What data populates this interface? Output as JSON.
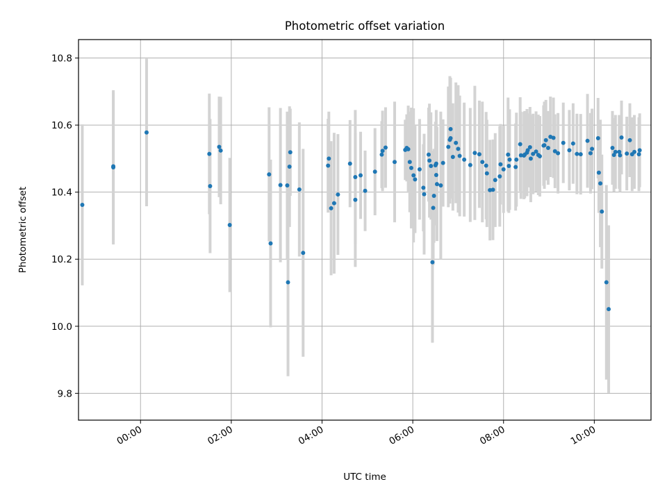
{
  "chart_data": {
    "type": "scatter",
    "title": "Photometric offset variation",
    "xlabel": "UTC time",
    "ylabel": "Photometric offset",
    "x_unit": "UTC time of day (HH:MM)",
    "xlim": [
      "-01:22",
      "11:15"
    ],
    "ylim": [
      9.72,
      10.855
    ],
    "x_ticks": [
      "00:00",
      "02:00",
      "04:00",
      "06:00",
      "08:00",
      "10:00"
    ],
    "y_ticks": [
      9.8,
      10.0,
      10.2,
      10.4,
      10.6,
      10.8
    ],
    "y_tick_labels": [
      "9.8",
      "10.0",
      "10.2",
      "10.4",
      "10.6",
      "10.8"
    ],
    "grid": true,
    "legend": "none",
    "colors": {
      "points": "#1f77b4",
      "errorbars": "#d3d3d3"
    },
    "series": [
      {
        "x": [
          "-01:17",
          "-00:36",
          "-00:36",
          "00:08",
          "01:31",
          "01:32",
          "01:44",
          "01:46",
          "01:58",
          "02:50",
          "02:52",
          "03:05",
          "03:14",
          "03:15",
          "03:17",
          "03:18",
          "03:30",
          "03:35",
          "04:08",
          "04:09",
          "04:12",
          "04:16",
          "04:21",
          "04:37",
          "04:44",
          "04:44",
          "04:51",
          "04:57",
          "05:10",
          "05:19",
          "05:20",
          "05:24",
          "05:36",
          "05:50",
          "05:52",
          "05:54",
          "05:56",
          "05:58",
          "06:01",
          "06:03",
          "06:09",
          "06:14",
          "06:15",
          "06:21",
          "06:22",
          "06:24",
          "06:26",
          "06:27",
          "06:28",
          "06:30",
          "06:31",
          "06:31",
          "06:32",
          "06:37",
          "06:40",
          "06:47",
          "06:49",
          "06:50",
          "06:50",
          "06:53",
          "06:57",
          "07:00",
          "07:02",
          "07:08",
          "07:16",
          "07:22",
          "07:28",
          "07:32",
          "07:37",
          "07:38",
          "07:42",
          "07:46",
          "07:49",
          "07:55",
          "07:56",
          "08:00",
          "08:06",
          "08:07",
          "08:08",
          "08:16",
          "08:17",
          "08:22",
          "08:23",
          "08:27",
          "08:28",
          "08:31",
          "08:32",
          "08:35",
          "08:36",
          "08:39",
          "08:43",
          "08:46",
          "08:48",
          "08:53",
          "08:54",
          "08:56",
          "08:59",
          "09:02",
          "09:06",
          "09:08",
          "09:12",
          "09:19",
          "09:27",
          "09:32",
          "09:37",
          "09:42",
          "09:51",
          "09:55",
          "09:57",
          "10:05",
          "10:06",
          "10:08",
          "10:10",
          "10:16",
          "10:19",
          "10:24",
          "10:26",
          "10:28",
          "10:33",
          "10:34",
          "10:36",
          "10:43",
          "10:47",
          "10:50",
          "10:53",
          "10:59",
          "11:00"
        ],
        "y": [
          10.362,
          10.477,
          10.474,
          10.578,
          10.514,
          10.418,
          10.535,
          10.524,
          10.302,
          10.453,
          10.247,
          10.421,
          10.42,
          10.131,
          10.476,
          10.519,
          10.408,
          10.219,
          10.479,
          10.5,
          10.352,
          10.367,
          10.393,
          10.485,
          10.445,
          10.377,
          10.45,
          10.404,
          10.461,
          10.512,
          10.523,
          10.533,
          10.49,
          10.526,
          10.532,
          10.528,
          10.49,
          10.472,
          10.45,
          10.438,
          10.468,
          10.413,
          10.394,
          10.512,
          10.494,
          10.478,
          10.191,
          10.353,
          10.389,
          10.48,
          10.451,
          10.485,
          10.424,
          10.42,
          10.487,
          10.535,
          10.556,
          10.588,
          10.561,
          10.505,
          10.547,
          10.529,
          10.508,
          10.497,
          10.481,
          10.517,
          10.513,
          10.49,
          10.479,
          10.456,
          10.406,
          10.407,
          10.436,
          10.447,
          10.483,
          10.468,
          10.512,
          10.478,
          10.497,
          10.475,
          10.497,
          10.543,
          10.51,
          10.509,
          10.512,
          10.518,
          10.525,
          10.534,
          10.5,
          10.514,
          10.521,
          10.511,
          10.507,
          10.539,
          10.54,
          10.555,
          10.532,
          10.565,
          10.562,
          10.522,
          10.516,
          10.547,
          10.525,
          10.545,
          10.514,
          10.513,
          10.553,
          10.516,
          10.529,
          10.561,
          10.458,
          10.426,
          10.342,
          10.131,
          10.051,
          10.532,
          10.511,
          10.52,
          10.52,
          10.51,
          10.563,
          10.515,
          10.555,
          10.513,
          10.52,
          10.513,
          10.525
        ],
        "yerr": [
          0.24,
          0.22,
          0.23,
          0.22,
          0.18,
          0.2,
          0.15,
          0.16,
          0.2,
          0.2,
          0.25,
          0.23,
          0.22,
          0.28,
          0.18,
          0.13,
          0.2,
          0.31,
          0.14,
          0.14,
          0.2,
          0.21,
          0.18,
          0.13,
          0.2,
          0.2,
          0.13,
          0.12,
          0.13,
          0.1,
          0.12,
          0.12,
          0.18,
          0.09,
          0.1,
          0.13,
          0.15,
          0.18,
          0.2,
          0.16,
          0.15,
          0.13,
          0.18,
          0.14,
          0.17,
          0.16,
          0.24,
          0.17,
          0.14,
          0.13,
          0.15,
          0.16,
          0.17,
          0.22,
          0.13,
          0.18,
          0.19,
          0.15,
          0.18,
          0.16,
          0.18,
          0.19,
          0.18,
          0.17,
          0.17,
          0.2,
          0.16,
          0.18,
          0.16,
          0.16,
          0.15,
          0.15,
          0.14,
          0.15,
          0.12,
          0.13,
          0.17,
          0.14,
          0.15,
          0.13,
          0.14,
          0.14,
          0.13,
          0.13,
          0.13,
          0.13,
          0.11,
          0.12,
          0.13,
          0.12,
          0.12,
          0.12,
          0.12,
          0.12,
          0.13,
          0.12,
          0.11,
          0.12,
          0.12,
          0.11,
          0.12,
          0.12,
          0.12,
          0.12,
          0.12,
          0.12,
          0.14,
          0.12,
          0.12,
          0.12,
          0.12,
          0.19,
          0.17,
          0.29,
          0.25,
          0.11,
          0.11,
          0.11,
          0.11,
          0.11,
          0.11,
          0.11,
          0.11,
          0.11,
          0.11,
          0.11,
          0.11
        ]
      }
    ]
  }
}
